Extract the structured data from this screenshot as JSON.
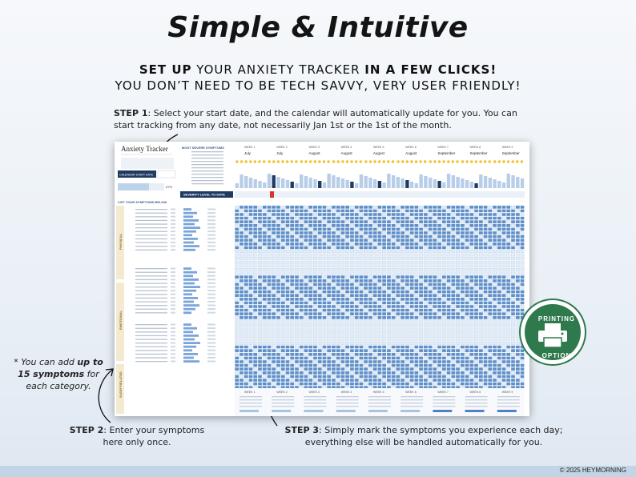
{
  "header": {
    "title": "Simple & Intuitive",
    "line1_bold_a": "SET UP",
    "line1_mid": " YOUR ANXIETY TRACKER ",
    "line1_bold_b": "IN A FEW CLICKS!",
    "line2": "YOU DON’T NEED TO BE TECH SAVVY, VERY USER FRIENDLY!"
  },
  "step1": {
    "label": "STEP 1",
    "text": ": Select your start date, and the calendar will automatically update for you. You can start tracking from any date, not necessarily Jan 1st or the 1st of the month."
  },
  "step2": {
    "label": "STEP 2",
    "text": ": Enter your symptoms here only once."
  },
  "step3": {
    "label": "STEP 3",
    "text": ": Simply mark the symptoms you experience each day; everything else will be handled automatically for you."
  },
  "note": {
    "pre": "* You can add ",
    "bold": "up to 15 symptoms",
    "post": " for each category."
  },
  "badge": {
    "top": "PRINTING",
    "bottom": "OPTION"
  },
  "footer": {
    "copyright": "© 2025 HEYMORNING"
  },
  "sheet": {
    "title": "Anxiety Tracker",
    "start_button": "CALENDAR START DATE",
    "percent": "67%",
    "most_severe_header": "MOST SEVERE SYMPTOMS",
    "severity_header": "SEVERITY LEVEL TO DATE",
    "list_header": "LIST YOUR SYMPTOMS BELOW",
    "categories": [
      "PHYSICAL",
      "EMOTIONAL",
      "SLEEP RELATED"
    ],
    "weeks": [
      "WEEK 1",
      "WEEK 2",
      "WEEK 3",
      "WEEK 4",
      "WEEK 5",
      "WEEK 6",
      "WEEK 7",
      "WEEK 8",
      "WEEK 9"
    ],
    "months": [
      "July",
      "July",
      "August",
      "August",
      "August",
      "August",
      "September",
      "September",
      "September"
    ]
  },
  "colors": {
    "accent": "#1f3b63",
    "cell": "#4f83c0",
    "badge": "#2e7a4c"
  }
}
